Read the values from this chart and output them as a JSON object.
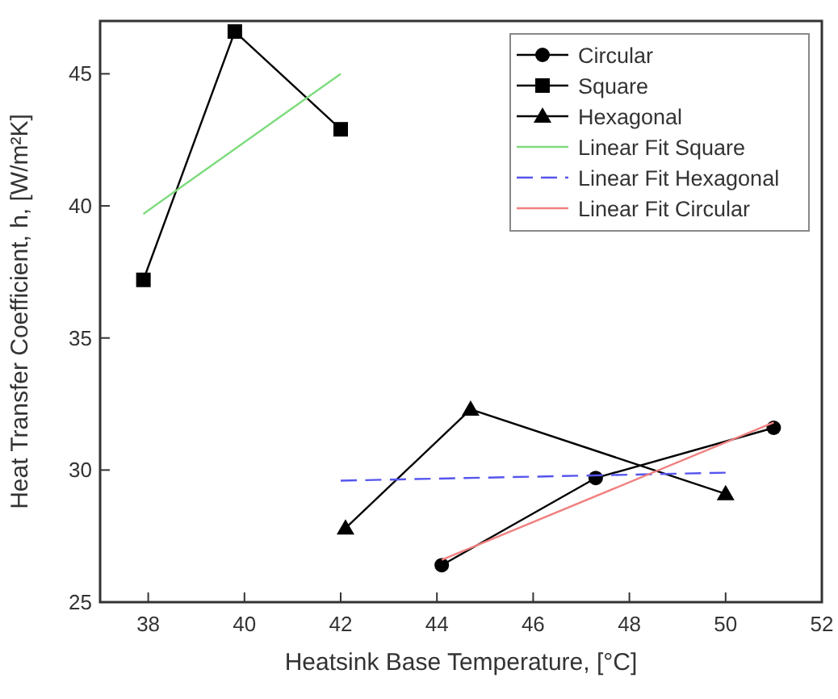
{
  "chart_data": {
    "type": "line",
    "xlabel": "Heatsink Base Temperature, [°C]",
    "ylabel": "Heat Transfer Coefficient, h, [W/m²K]",
    "xlim": [
      37,
      52
    ],
    "xticks": [
      38,
      40,
      42,
      44,
      46,
      48,
      50,
      52
    ],
    "ylim": [
      25,
      47
    ],
    "yticks": [
      25,
      30,
      35,
      40,
      45
    ],
    "grid": false,
    "legend": "top right",
    "series": [
      {
        "name": "Circular",
        "color": "#000000",
        "marker": "circle",
        "x": [
          44.1,
          47.3,
          51.0
        ],
        "values": [
          26.4,
          29.7,
          31.6
        ]
      },
      {
        "name": "Square",
        "color": "#000000",
        "marker": "square",
        "x": [
          37.9,
          39.8,
          42.0
        ],
        "values": [
          37.2,
          46.6,
          42.9
        ]
      },
      {
        "name": "Hexagonal",
        "color": "#000000",
        "marker": "triangle",
        "x": [
          42.1,
          44.7,
          50.0
        ],
        "values": [
          27.8,
          32.3,
          29.1
        ]
      },
      {
        "name": "Linear Fit Square",
        "color": "#7ddc7d",
        "marker": "none",
        "x": [
          37.9,
          42.0
        ],
        "values": [
          39.7,
          45.0
        ]
      },
      {
        "name": "Linear Fit Hexagonal",
        "color": "#5555ee",
        "marker": "none",
        "line_style": "dashed",
        "x": [
          42.0,
          50.0
        ],
        "values": [
          29.6,
          29.9
        ]
      },
      {
        "name": "Linear Fit Circular",
        "color": "#f08080",
        "marker": "none",
        "x": [
          44.1,
          51.0
        ],
        "values": [
          26.6,
          31.8
        ]
      }
    ]
  }
}
